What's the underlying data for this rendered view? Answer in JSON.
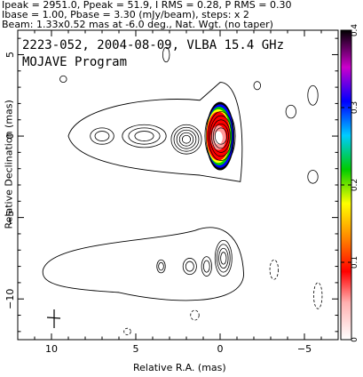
{
  "header": {
    "line1": "Ipeak = 2951.0, Ppeak = 51.9, I RMS = 0.28, P RMS = 0.30",
    "line2": "Ibase = 1.00, Pbase = 3.30 (mJy/beam), steps: x 2",
    "line3": "Beam: 1.33x0.52 mas at -6.0 deg., Nat. Wgt. (no taper)"
  },
  "chart_data": {
    "type": "contour",
    "title": "2223-052, 2004-08-09, VLBA 15.4 GHz",
    "subtitle": "MOJAVE Program",
    "xlabel": "Relative R.A. (mas)",
    "ylabel": "Relative Declination (mas)",
    "xlim": [
      12,
      -7
    ],
    "ylim": [
      -12.5,
      6.5
    ],
    "x_ticks": [
      10,
      5,
      0,
      -5
    ],
    "y_ticks": [
      5,
      0,
      -5,
      -10
    ],
    "colorbar": {
      "range": [
        0,
        0.4
      ],
      "ticks": [
        0,
        0.1,
        0.2,
        0.3,
        0.4
      ],
      "colors": [
        "#ffffff",
        "#ff0000",
        "#ff8800",
        "#ffff00",
        "#00cc00",
        "#00ccff",
        "#0000ff",
        "#cc00cc",
        "#000000"
      ]
    },
    "stokes_I_components": [
      {
        "x": 0.0,
        "y": 0.0,
        "a": 0.9,
        "b": 1.8,
        "levels": 10
      },
      {
        "x": 2.0,
        "y": -0.2,
        "a": 0.9,
        "b": 0.9,
        "levels": 5
      },
      {
        "x": 4.5,
        "y": 0.0,
        "a": 1.3,
        "b": 0.7,
        "levels": 3
      },
      {
        "x": 7.0,
        "y": 0.0,
        "a": 0.7,
        "b": 0.5,
        "levels": 2
      }
    ],
    "polarization_components": [
      {
        "x": -0.2,
        "y": -7.5,
        "a": 0.5,
        "b": 1.1,
        "levels": 4
      },
      {
        "x": 0.8,
        "y": -8.0,
        "a": 0.3,
        "b": 0.6,
        "levels": 2
      },
      {
        "x": 1.8,
        "y": -8.0,
        "a": 0.4,
        "b": 0.5,
        "levels": 2
      },
      {
        "x": 3.5,
        "y": -8.0,
        "a": 0.25,
        "b": 0.4,
        "levels": 2
      }
    ]
  }
}
